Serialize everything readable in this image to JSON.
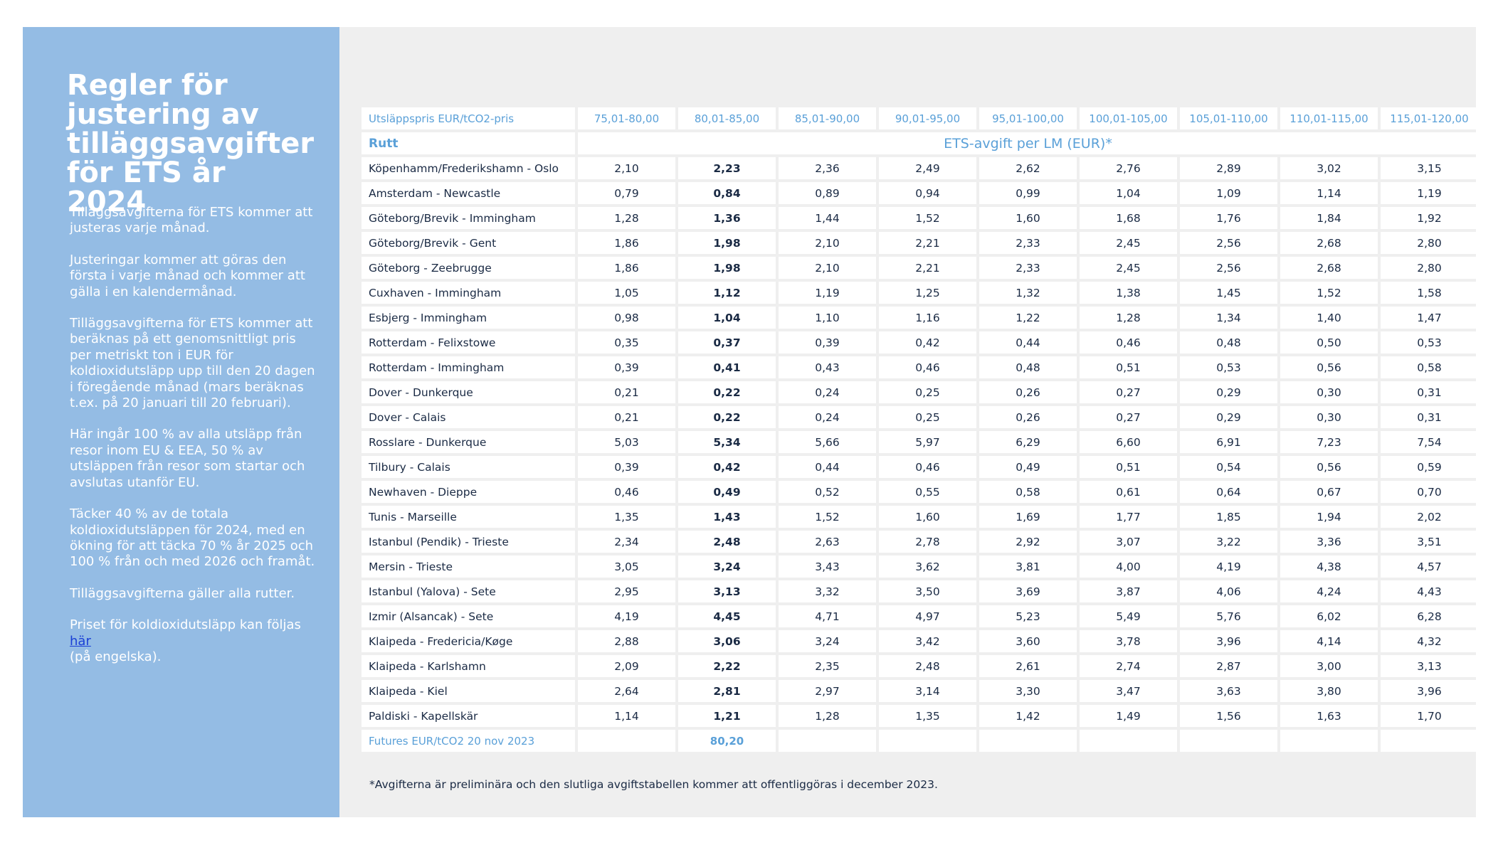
{
  "panel": {
    "title": "Regler för justering av tilläggsavgifter för ETS år 2024",
    "paragraphs": [
      "Tilläggsavgifterna för ETS kommer att justeras varje månad.",
      "Justeringar kommer att göras den första i varje månad och kommer att gälla i en kalendermånad.",
      "Tilläggsavgifterna för ETS kommer att beräknas på ett genomsnittligt pris per metriskt ton i EUR för koldioxidutsläpp upp till den 20 dagen i föregående månad (mars beräknas t.ex. på 20 januari till 20 februari).",
      "Här ingår 100 % av alla utsläpp från resor inom EU & EEA, 50 % av utsläppen från resor som startar och avslutas utanför EU.",
      "Täcker 40 % av de totala koldioxidutsläppen för 2024, med en ökning för att täcka 70 % år 2025 och 100 % från och med 2026 och framåt.",
      "Tilläggsavgifterna gäller alla rutter."
    ],
    "link_paragraph": {
      "before": "Priset för koldioxidutsläpp kan följas ",
      "link": "här",
      "after": "(på engelska)."
    }
  },
  "table": {
    "price_label": "Utsläppspris EUR/tCO2-pris",
    "price_ranges": [
      "75,01-80,00",
      "80,01-85,00",
      "85,01-90,00",
      "90,01-95,00",
      "95,01-100,00",
      "100,01-105,00",
      "105,01-110,00",
      "110,01-115,00",
      "115,01-120,00"
    ],
    "route_header": "Rutt",
    "fee_header": "ETS-avgift per LM (EUR)*",
    "rows": [
      {
        "route": "Köpenhamm/Frederikshamn - Oslo",
        "values": [
          "2,10",
          "2,23",
          "2,36",
          "2,49",
          "2,62",
          "2,76",
          "2,89",
          "3,02",
          "3,15"
        ]
      },
      {
        "route": "Amsterdam - Newcastle",
        "values": [
          "0,79",
          "0,84",
          "0,89",
          "0,94",
          "0,99",
          "1,04",
          "1,09",
          "1,14",
          "1,19"
        ]
      },
      {
        "route": "Göteborg/Brevik - Immingham",
        "values": [
          "1,28",
          "1,36",
          "1,44",
          "1,52",
          "1,60",
          "1,68",
          "1,76",
          "1,84",
          "1,92"
        ]
      },
      {
        "route": "Göteborg/Brevik - Gent",
        "values": [
          "1,86",
          "1,98",
          "2,10",
          "2,21",
          "2,33",
          "2,45",
          "2,56",
          "2,68",
          "2,80"
        ]
      },
      {
        "route": "Göteborg - Zeebrugge",
        "values": [
          "1,86",
          "1,98",
          "2,10",
          "2,21",
          "2,33",
          "2,45",
          "2,56",
          "2,68",
          "2,80"
        ]
      },
      {
        "route": "Cuxhaven - Immingham",
        "values": [
          "1,05",
          "1,12",
          "1,19",
          "1,25",
          "1,32",
          "1,38",
          "1,45",
          "1,52",
          "1,58"
        ]
      },
      {
        "route": "Esbjerg - Immingham",
        "values": [
          "0,98",
          "1,04",
          "1,10",
          "1,16",
          "1,22",
          "1,28",
          "1,34",
          "1,40",
          "1,47"
        ]
      },
      {
        "route": "Rotterdam - Felixstowe",
        "values": [
          "0,35",
          "0,37",
          "0,39",
          "0,42",
          "0,44",
          "0,46",
          "0,48",
          "0,50",
          "0,53"
        ]
      },
      {
        "route": "Rotterdam - Immingham",
        "values": [
          "0,39",
          "0,41",
          "0,43",
          "0,46",
          "0,48",
          "0,51",
          "0,53",
          "0,56",
          "0,58"
        ]
      },
      {
        "route": "Dover - Dunkerque",
        "values": [
          "0,21",
          "0,22",
          "0,24",
          "0,25",
          "0,26",
          "0,27",
          "0,29",
          "0,30",
          "0,31"
        ]
      },
      {
        "route": "Dover - Calais",
        "values": [
          "0,21",
          "0,22",
          "0,24",
          "0,25",
          "0,26",
          "0,27",
          "0,29",
          "0,30",
          "0,31"
        ]
      },
      {
        "route": "Rosslare - Dunkerque",
        "values": [
          "5,03",
          "5,34",
          "5,66",
          "5,97",
          "6,29",
          "6,60",
          "6,91",
          "7,23",
          "7,54"
        ]
      },
      {
        "route": "Tilbury - Calais",
        "values": [
          "0,39",
          "0,42",
          "0,44",
          "0,46",
          "0,49",
          "0,51",
          "0,54",
          "0,56",
          "0,59"
        ]
      },
      {
        "route": "Newhaven - Dieppe",
        "values": [
          "0,46",
          "0,49",
          "0,52",
          "0,55",
          "0,58",
          "0,61",
          "0,64",
          "0,67",
          "0,70"
        ]
      },
      {
        "route": "Tunis - Marseille",
        "values": [
          "1,35",
          "1,43",
          "1,52",
          "1,60",
          "1,69",
          "1,77",
          "1,85",
          "1,94",
          "2,02"
        ]
      },
      {
        "route": "Istanbul (Pendik) - Trieste",
        "values": [
          "2,34",
          "2,48",
          "2,63",
          "2,78",
          "2,92",
          "3,07",
          "3,22",
          "3,36",
          "3,51"
        ]
      },
      {
        "route": "Mersin - Trieste",
        "values": [
          "3,05",
          "3,24",
          "3,43",
          "3,62",
          "3,81",
          "4,00",
          "4,19",
          "4,38",
          "4,57"
        ]
      },
      {
        "route": "Istanbul (Yalova) - Sete",
        "values": [
          "2,95",
          "3,13",
          "3,32",
          "3,50",
          "3,69",
          "3,87",
          "4,06",
          "4,24",
          "4,43"
        ]
      },
      {
        "route": "Izmir (Alsancak) - Sete",
        "values": [
          "4,19",
          "4,45",
          "4,71",
          "4,97",
          "5,23",
          "5,49",
          "5,76",
          "6,02",
          "6,28"
        ]
      },
      {
        "route": "Klaipeda - Fredericia/Køge",
        "values": [
          "2,88",
          "3,06",
          "3,24",
          "3,42",
          "3,60",
          "3,78",
          "3,96",
          "4,14",
          "4,32"
        ]
      },
      {
        "route": "Klaipeda - Karlshamn",
        "values": [
          "2,09",
          "2,22",
          "2,35",
          "2,48",
          "2,61",
          "2,74",
          "2,87",
          "3,00",
          "3,13"
        ]
      },
      {
        "route": "Klaipeda - Kiel",
        "values": [
          "2,64",
          "2,81",
          "2,97",
          "3,14",
          "3,30",
          "3,47",
          "3,63",
          "3,80",
          "3,96"
        ]
      },
      {
        "route": "Paldiski - Kapellskär",
        "values": [
          "1,14",
          "1,21",
          "1,28",
          "1,35",
          "1,42",
          "1,49",
          "1,56",
          "1,63",
          "1,70"
        ]
      }
    ],
    "futures": {
      "label": "Futures EUR/tCO2 20 nov 2023",
      "value": "80,20"
    }
  },
  "footnote": "*Avgifterna är preliminära och den slutliga avgiftstabellen kommer att offentliggöras  i december 2023."
}
